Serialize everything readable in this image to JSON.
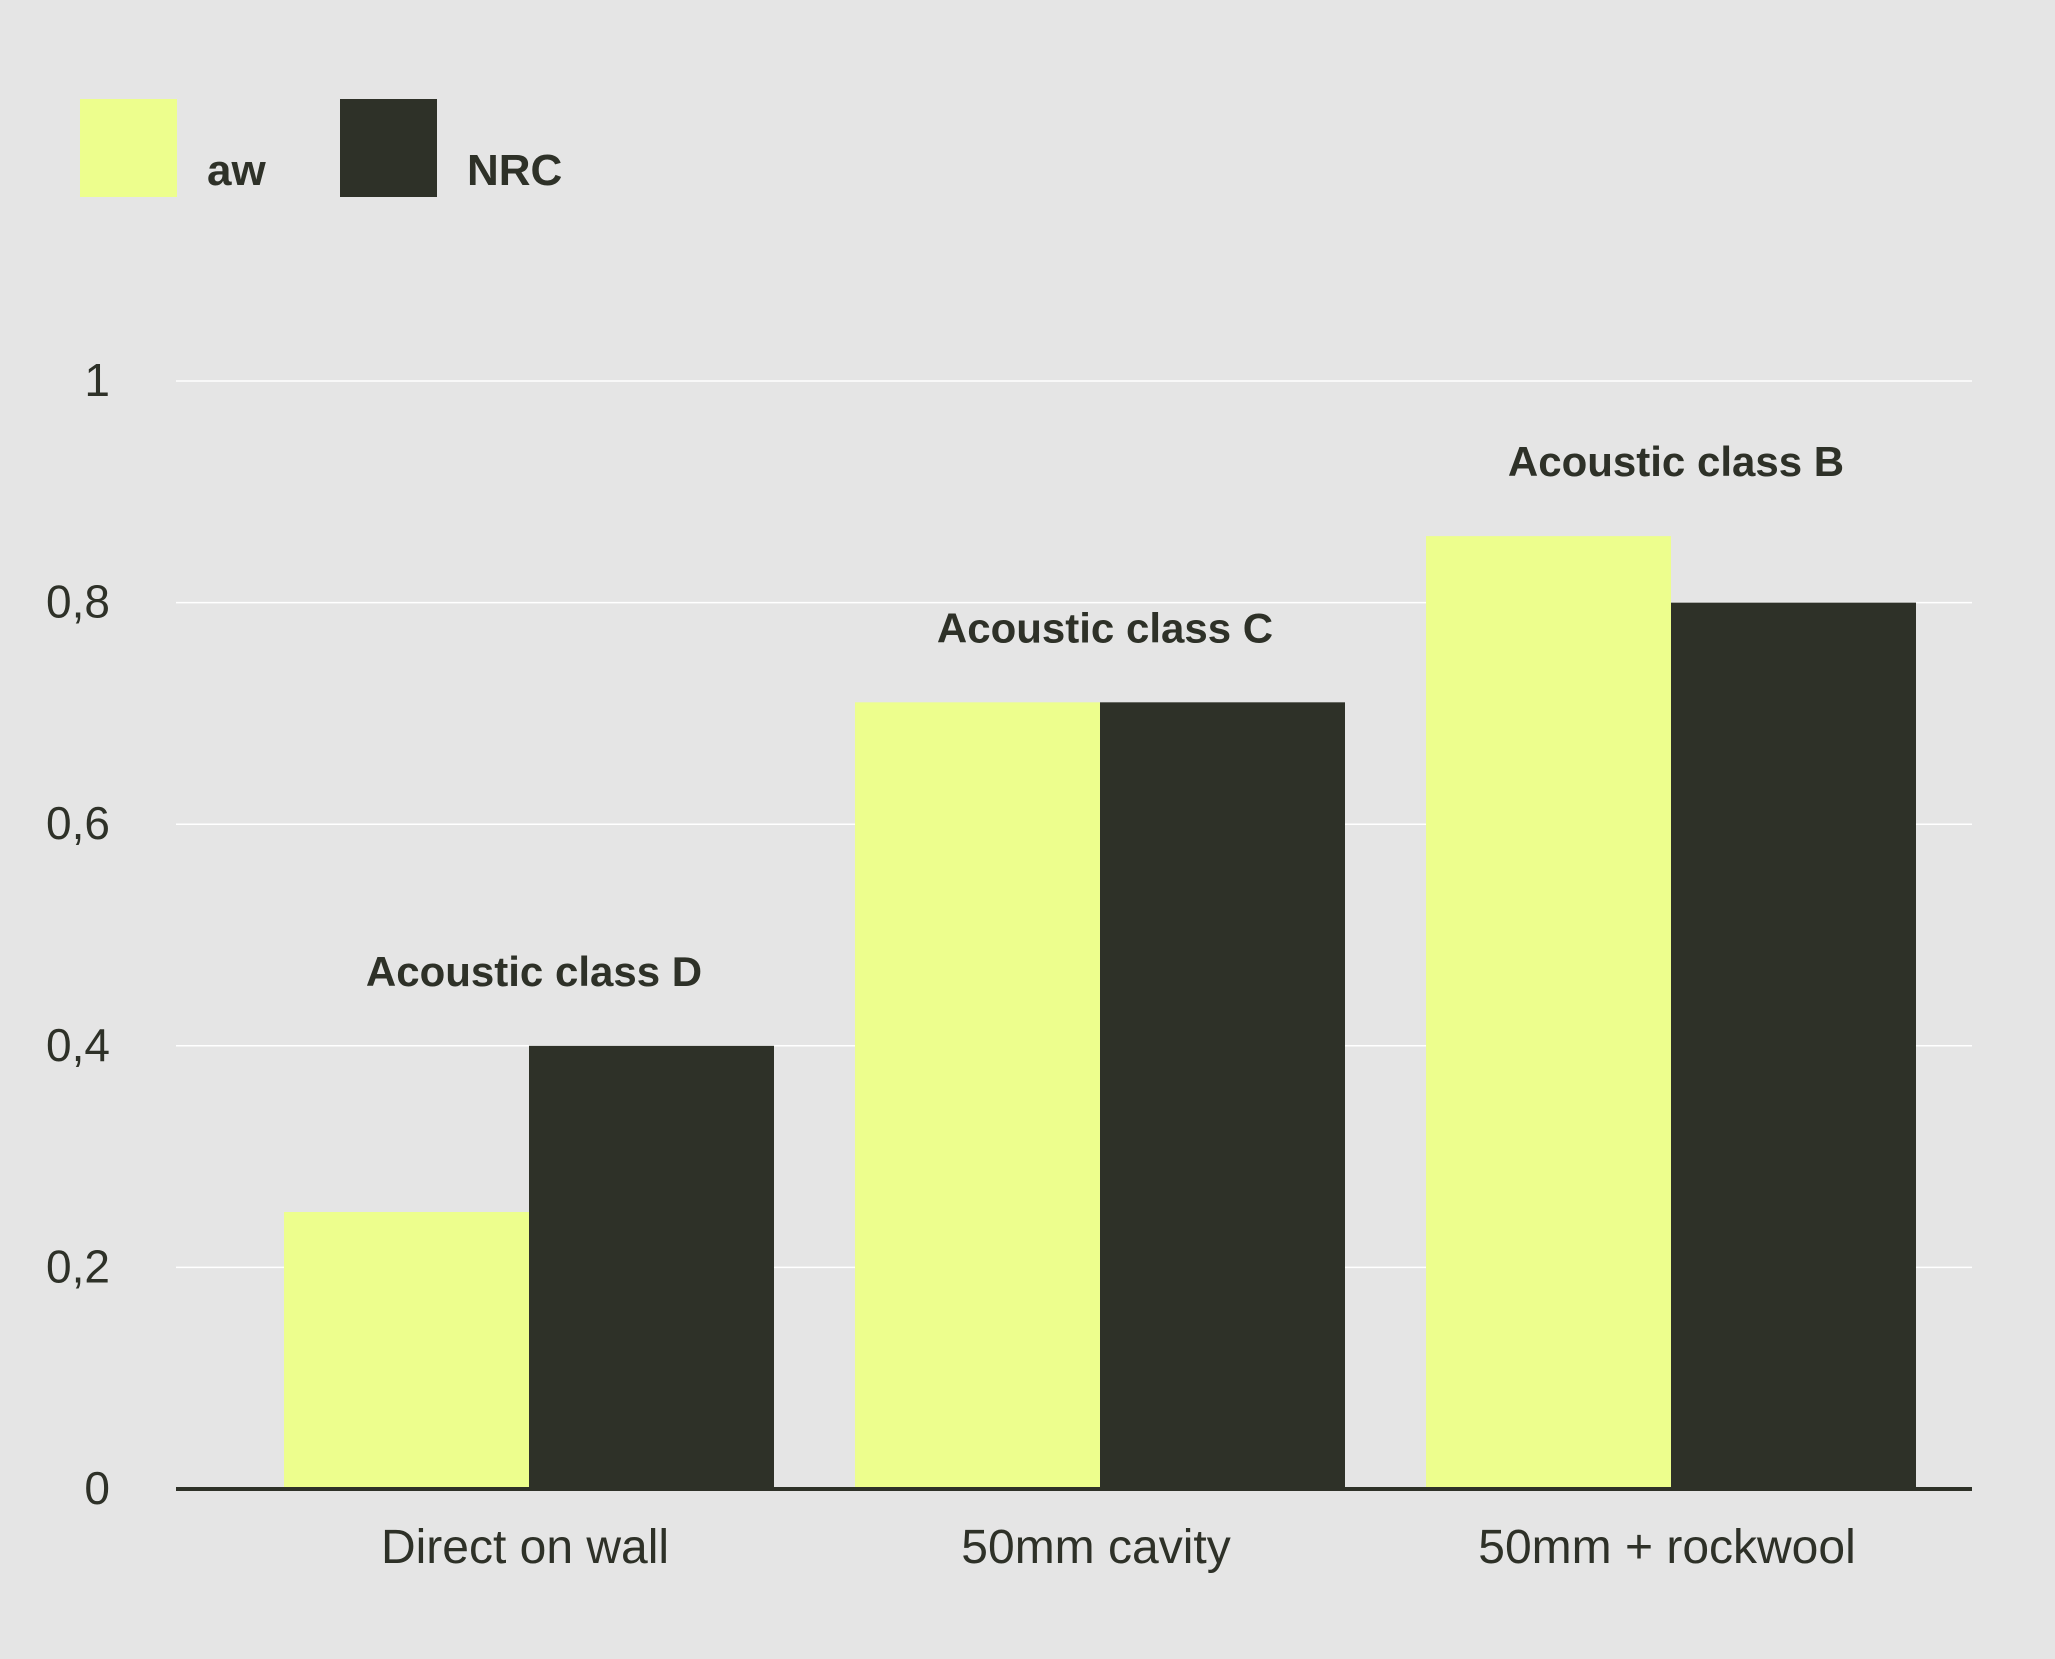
{
  "chart_data": {
    "type": "bar",
    "categories": [
      "Direct on wall",
      "50mm cavity",
      "50mm + rockwool"
    ],
    "series": [
      {
        "name": "aw",
        "values": [
          0.25,
          0.71,
          0.86
        ],
        "color": "#edfe8d"
      },
      {
        "name": "NRC",
        "values": [
          0.4,
          0.71,
          0.8
        ],
        "color": "#2e3128"
      }
    ],
    "annotations": [
      "Acoustic class D",
      "Acoustic class C",
      "Acoustic class B"
    ],
    "yticks": [
      "0",
      "0,2",
      "0,4",
      "0,6",
      "0,8",
      "1"
    ],
    "ytick_values": [
      0,
      0.2,
      0.4,
      0.6,
      0.8,
      1
    ],
    "ylim": [
      0,
      1
    ],
    "title": "",
    "xlabel": "",
    "ylabel": "",
    "grid": true,
    "legend_position": "top-left",
    "colors": {
      "background": "#e5e5e5",
      "text": "#2e3128",
      "grid": "#ffffff",
      "axis": "#2e3128"
    }
  }
}
